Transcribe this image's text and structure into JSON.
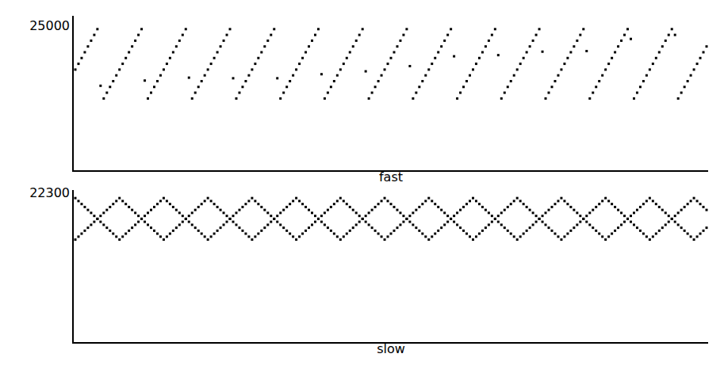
{
  "chart_data": [
    {
      "type": "scatter",
      "x_label": "fast",
      "color": "#000000",
      "marker": "square",
      "tick_labels": "y",
      "xlim": [
        -2,
        802
      ],
      "ylim": [
        0,
        26700
      ],
      "yticks": [
        25000
      ],
      "x": [
        0,
        4,
        8,
        12,
        16,
        20,
        24,
        28,
        32,
        36,
        40,
        44,
        48,
        52,
        56,
        60,
        64,
        68,
        72,
        76,
        80,
        84,
        88,
        92,
        96,
        100,
        104,
        108,
        112,
        116,
        120,
        124,
        128,
        132,
        136,
        140,
        144,
        148,
        152,
        156,
        160,
        164,
        168,
        172,
        176,
        180,
        184,
        188,
        192,
        196,
        200,
        204,
        208,
        212,
        216,
        220,
        224,
        228,
        232,
        236,
        240,
        244,
        248,
        252,
        256,
        260,
        264,
        268,
        272,
        276,
        280,
        284,
        288,
        292,
        296,
        300,
        304,
        308,
        312,
        316,
        320,
        324,
        328,
        332,
        336,
        340,
        344,
        348,
        352,
        356,
        360,
        364,
        368,
        372,
        376,
        380,
        384,
        388,
        392,
        396,
        400,
        404,
        408,
        412,
        416,
        420,
        424,
        428,
        432,
        436,
        440,
        444,
        448,
        452,
        456,
        460,
        464,
        468,
        472,
        476,
        480,
        484,
        488,
        492,
        496,
        500,
        504,
        508,
        512,
        516,
        520,
        524,
        528,
        532,
        536,
        540,
        544,
        548,
        552,
        556,
        560,
        564,
        568,
        572,
        576,
        580,
        584,
        588,
        592,
        596,
        600,
        604,
        608,
        612,
        616,
        620,
        624,
        628,
        632,
        636,
        640,
        644,
        648,
        652,
        656,
        660,
        664,
        668,
        672,
        676,
        680,
        684,
        688,
        692,
        696,
        700,
        704,
        708,
        712,
        716,
        720,
        724,
        728,
        732,
        736,
        740,
        744,
        748,
        752,
        756,
        760,
        764,
        768,
        772,
        776,
        780,
        784,
        788,
        792,
        796,
        800
      ],
      "series": [
        {
          "color": "#000000",
          "values": [
            17400,
            18400,
            19400,
            20400,
            21400,
            22400,
            23400,
            24400,
            14600,
            12400,
            13400,
            14400,
            15400,
            16400,
            17400,
            18400,
            19400,
            20400,
            21400,
            22400,
            23400,
            24400,
            15500,
            12400,
            13400,
            14400,
            15400,
            16400,
            17400,
            18400,
            19400,
            20400,
            21400,
            22400,
            23400,
            24400,
            16000,
            12400,
            13400,
            14400,
            15400,
            16400,
            17400,
            18400,
            19400,
            20400,
            21400,
            22400,
            23400,
            24400,
            15900,
            12400,
            13400,
            14400,
            15400,
            16400,
            17400,
            18400,
            19400,
            20400,
            21400,
            22400,
            23400,
            24400,
            15900,
            12400,
            13400,
            14400,
            15400,
            16400,
            17400,
            18400,
            19400,
            20400,
            21400,
            22400,
            23400,
            24400,
            16600,
            12400,
            13400,
            14400,
            15400,
            16400,
            17400,
            18400,
            19400,
            20400,
            21400,
            22400,
            23400,
            24400,
            17100,
            12400,
            13400,
            14400,
            15400,
            16400,
            17400,
            18400,
            19400,
            20400,
            21400,
            22400,
            23400,
            24400,
            18000,
            12400,
            13400,
            14400,
            15400,
            16400,
            17400,
            18400,
            19400,
            20400,
            21400,
            22400,
            23400,
            24400,
            19700,
            12400,
            13400,
            14400,
            15400,
            16400,
            17400,
            18400,
            19400,
            20400,
            21400,
            22400,
            23400,
            24400,
            19900,
            12400,
            13400,
            14400,
            15400,
            16400,
            17400,
            18400,
            19400,
            20400,
            21400,
            22400,
            23400,
            24400,
            20500,
            12400,
            13400,
            14400,
            15400,
            16400,
            17400,
            18400,
            19400,
            20400,
            21400,
            22400,
            23400,
            24400,
            20600,
            12400,
            13400,
            14400,
            15400,
            16400,
            17400,
            18400,
            19400,
            20400,
            21400,
            22400,
            23400,
            24400,
            22700,
            12400,
            13400,
            14400,
            15400,
            16400,
            17400,
            18400,
            19400,
            20400,
            21400,
            22400,
            23400,
            24400,
            23400,
            12400,
            13400,
            14400,
            15400,
            16400,
            17400,
            18400,
            19400,
            20400,
            21400
          ]
        }
      ]
    },
    {
      "type": "scatter",
      "x_label": "slow",
      "color": "#000000",
      "marker": "square",
      "tick_labels": "y",
      "xlim": [
        -2,
        802
      ],
      "ylim": [
        0,
        22700
      ],
      "yticks": [
        22300
      ],
      "x": [
        0,
        4,
        8,
        12,
        16,
        20,
        24,
        28,
        32,
        36,
        40,
        44,
        48,
        52,
        56,
        60,
        64,
        68,
        72,
        76,
        80,
        84,
        88,
        92,
        96,
        100,
        104,
        108,
        112,
        116,
        120,
        124,
        128,
        132,
        136,
        140,
        144,
        148,
        152,
        156,
        160,
        164,
        168,
        172,
        176,
        180,
        184,
        188,
        192,
        196,
        200,
        204,
        208,
        212,
        216,
        220,
        224,
        228,
        232,
        236,
        240,
        244,
        248,
        252,
        256,
        260,
        264,
        268,
        272,
        276,
        280,
        284,
        288,
        292,
        296,
        300,
        304,
        308,
        312,
        316,
        320,
        324,
        328,
        332,
        336,
        340,
        344,
        348,
        352,
        356,
        360,
        364,
        368,
        372,
        376,
        380,
        384,
        388,
        392,
        396,
        400,
        404,
        408,
        412,
        416,
        420,
        424,
        428,
        432,
        436,
        440,
        444,
        448,
        452,
        456,
        460,
        464,
        468,
        472,
        476,
        480,
        484,
        488,
        492,
        496,
        500,
        504,
        508,
        512,
        516,
        520,
        524,
        528,
        532,
        536,
        540,
        544,
        548,
        552,
        556,
        560,
        564,
        568,
        572,
        576,
        580,
        584,
        588,
        592,
        596,
        600,
        604,
        608,
        612,
        616,
        620,
        624,
        628,
        632,
        636,
        640,
        644,
        648,
        652,
        656,
        660,
        664,
        668,
        672,
        676,
        680,
        684,
        688,
        692,
        696,
        700,
        704,
        708,
        712,
        716,
        720,
        724,
        728,
        732,
        736,
        740,
        744,
        748,
        752,
        756,
        760,
        764,
        768,
        772,
        776,
        780,
        784,
        788,
        792,
        796,
        800
      ],
      "series": [
        {
          "color": "#000000",
          "values": [
            21500,
            21060,
            20610,
            20170,
            19730,
            19290,
            18840,
            18400,
            17960,
            17510,
            17070,
            16630,
            16190,
            15740,
            15300,
            15740,
            16190,
            16630,
            17070,
            17510,
            17960,
            18400,
            18840,
            19290,
            19730,
            20170,
            20610,
            21060,
            21500,
            21060,
            20610,
            20170,
            19730,
            19290,
            18840,
            18400,
            17960,
            17510,
            17070,
            16630,
            16190,
            15740,
            15300,
            15740,
            16190,
            16630,
            17070,
            17510,
            17960,
            18400,
            18840,
            19290,
            19730,
            20170,
            20610,
            21060,
            21500,
            21060,
            20610,
            20170,
            19730,
            19290,
            18840,
            18400,
            17960,
            17510,
            17070,
            16630,
            16190,
            15740,
            15300,
            15740,
            16190,
            16630,
            17070,
            17510,
            17960,
            18400,
            18840,
            19290,
            19730,
            20170,
            20610,
            21060,
            21500,
            21060,
            20610,
            20170,
            19730,
            19290,
            18840,
            18400,
            17960,
            17510,
            17070,
            16630,
            16190,
            15740,
            15300,
            15740,
            16190,
            16630,
            17070,
            17510,
            17960,
            18400,
            18840,
            19290,
            19730,
            20170,
            20610,
            21060,
            21500,
            21060,
            20610,
            20170,
            19730,
            19290,
            18840,
            18400,
            17960,
            17510,
            17070,
            16630,
            16190,
            15740,
            15300,
            15740,
            16190,
            16630,
            17070,
            17510,
            17960,
            18400,
            18840,
            19290,
            19730,
            20170,
            20610,
            21060,
            21500,
            21060,
            20610,
            20170,
            19730,
            19290,
            18840,
            18400,
            17960,
            17510,
            17070,
            16630,
            16190,
            15740,
            15300,
            15740,
            16190,
            16630,
            17070,
            17510,
            17960,
            18400,
            18840,
            19290,
            19730,
            20170,
            20610,
            21060,
            21500,
            21060,
            20610,
            20170,
            19730,
            19290,
            18840,
            18400,
            17960,
            17510,
            17070,
            16630,
            16190,
            15740,
            15300,
            15740,
            16190,
            16630,
            17070,
            17510,
            17960,
            18400,
            18840,
            19290,
            19730,
            20170,
            20610,
            21060,
            21500,
            21060,
            20610,
            20170,
            19730
          ]
        },
        {
          "color": "#000000",
          "values": [
            15300,
            15740,
            16190,
            16630,
            17070,
            17510,
            17960,
            18400,
            18840,
            19290,
            19730,
            20170,
            20610,
            21060,
            21500,
            21060,
            20610,
            20170,
            19730,
            19290,
            18840,
            18400,
            17960,
            17510,
            17070,
            16630,
            16190,
            15740,
            15300,
            15740,
            16190,
            16630,
            17070,
            17510,
            17960,
            18400,
            18840,
            19290,
            19730,
            20170,
            20610,
            21060,
            21500,
            21060,
            20610,
            20170,
            19730,
            19290,
            18840,
            18400,
            17960,
            17510,
            17070,
            16630,
            16190,
            15740,
            15300,
            15740,
            16190,
            16630,
            17070,
            17510,
            17960,
            18400,
            18840,
            19290,
            19730,
            20170,
            20610,
            21060,
            21500,
            21060,
            20610,
            20170,
            19730,
            19290,
            18840,
            18400,
            17960,
            17510,
            17070,
            16630,
            16190,
            15740,
            15300,
            15740,
            16190,
            16630,
            17070,
            17510,
            17960,
            18400,
            18840,
            19290,
            19730,
            20170,
            20610,
            21060,
            21500,
            21060,
            20610,
            20170,
            19730,
            19290,
            18840,
            18400,
            17960,
            17510,
            17070,
            16630,
            16190,
            15740,
            15300,
            15740,
            16190,
            16630,
            17070,
            17510,
            17960,
            18400,
            18840,
            19290,
            19730,
            20170,
            20610,
            21060,
            21500,
            21060,
            20610,
            20170,
            19730,
            19290,
            18840,
            18400,
            17960,
            17510,
            17070,
            16630,
            16190,
            15740,
            15300,
            15740,
            16190,
            16630,
            17070,
            17510,
            17960,
            18400,
            18840,
            19290,
            19730,
            20170,
            20610,
            21060,
            21500,
            21060,
            20610,
            20170,
            19730,
            19290,
            18840,
            18400,
            17960,
            17510,
            17070,
            16630,
            16190,
            15740,
            15300,
            15740,
            16190,
            16630,
            17070,
            17510,
            17960,
            18400,
            18840,
            19290,
            19730,
            20170,
            20610,
            21060,
            21500,
            21060,
            20610,
            20170,
            19730,
            19290,
            18840,
            18400,
            17960,
            17510,
            17070,
            16630,
            16190,
            15740,
            15300,
            15740,
            16190,
            16630,
            17070
          ]
        }
      ]
    }
  ]
}
